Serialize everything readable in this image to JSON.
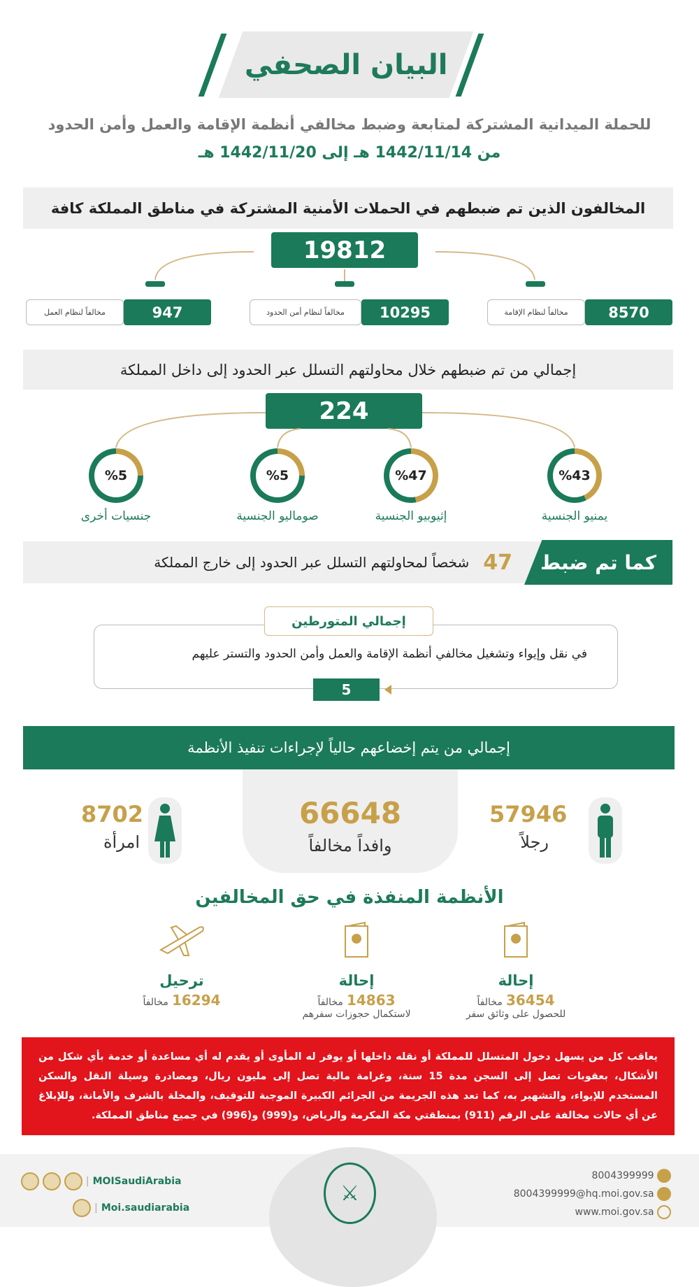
{
  "title": "البيان الصحفي",
  "subtitle": "للحملة الميدانية المشتركة لمتابعة وضبط مخالفي أنظمة الإقامة والعمل وأمن الحدود",
  "date_range": "من 1442/11/14 هـ إلى 1442/11/20 هـ",
  "section1": {
    "heading": "المخالفون الذين تم ضبطهم في الحملات الأمنية المشتركة في مناطق المملكة كافة",
    "total": "19812",
    "items": [
      {
        "value": "8570",
        "label": "مخالفاً لنظام الإقامة"
      },
      {
        "value": "10295",
        "label": "مخالفاً لنظام أمن الحدود"
      },
      {
        "value": "947",
        "label": "مخالفاً لنظام العمل"
      }
    ]
  },
  "section2": {
    "heading": "إجمالي من تم ضبطهم خلال محاولتهم التسلل عبر الحدود إلى داخل المملكة",
    "total": "224",
    "items": [
      {
        "percent": "%43",
        "value": 43,
        "label": "يمنيو الجنسية"
      },
      {
        "percent": "%47",
        "value": 47,
        "label": "إثيوبيو الجنسية"
      },
      {
        "percent": "%5",
        "value": 5,
        "label": "صوماليو الجنسية"
      },
      {
        "percent": "%5",
        "value": 5,
        "label": "جنسيات أخرى"
      }
    ]
  },
  "section3": {
    "tag": "كما تم ضبط",
    "value": "47",
    "text": "شخصاً لمحاولتهم التسلل عبر الحدود إلى خارج المملكة"
  },
  "section4": {
    "label": "إجمالي المتورطين",
    "text": "في نقل وإيواء وتشغيل مخالفي أنظمة الإقامة والعمل وأمن الحدود والتستر عليهم",
    "value": "5"
  },
  "section5": {
    "heading": "إجمالي من يتم إخضاعهم حالياً لإجراءات تنفيذ الأنظمة",
    "total": "66648",
    "total_label": "وافداً مخالفاً",
    "men": "57946",
    "men_label": "رجلاً",
    "women": "8702",
    "women_label": "امرأة"
  },
  "section6": {
    "heading": "الأنظمة المنفذة في حق المخالفين",
    "items": [
      {
        "title": "إحالة",
        "value": "36454",
        "unit": "مخالفاً",
        "sub": "للحصول على وثائق سفر",
        "icon": "passport-icon"
      },
      {
        "title": "إحالة",
        "value": "14863",
        "unit": "مخالفاً",
        "sub": "لاستكمال حجوزات سفرهم",
        "icon": "passport-icon"
      },
      {
        "title": "ترحيل",
        "value": "16294",
        "unit": "مخالفاً",
        "sub": "",
        "icon": "airplane-icon"
      }
    ]
  },
  "warning": "يعاقب كل من يسهل دخول المتسلل للمملكة أو نقله داخلها أو يوفر له المأوى أو يقدم له أي مساعدة أو خدمة بأي شكل من الأشكال، بعقوبات تصل إلى السجن مدة 15 سنة، وغرامة مالية تصل إلى مليون ريال، ومصادرة وسيلة النقل والسكن المستخدم للإيواء، والتشهير به، كما تعد هذه الجريمة من الجرائم الكبيرة الموجبة للتوقيف، والمخلة بالشرف والأمانة، وللإبلاغ عن أي حالات مخالفة على الرقم (911) بمنطقتي مكة المكرمة والرياض، و(999) و(996) في جميع مناطق المملكة.",
  "footer": {
    "phone": "8004399999",
    "email": "8004399999@hq.moi.gov.sa",
    "website": "www.moi.gov.sa",
    "social1": "MOISaudiArabia",
    "social2": "Moi.saudiarabia",
    "emblem_text": ""
  },
  "colors": {
    "green": "#1a7a5a",
    "gold": "#c7a04a",
    "red": "#e2141c"
  }
}
